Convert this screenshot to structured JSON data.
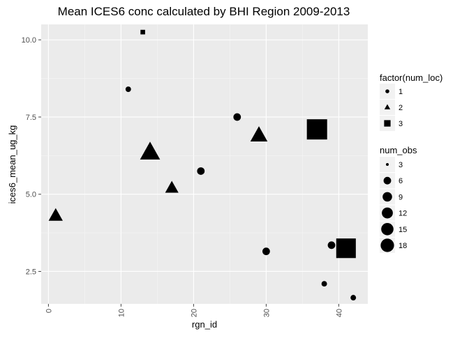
{
  "chart_data": {
    "type": "scatter",
    "title": "Mean ICES6 conc calculated by BHI Region 2009-2013",
    "xlabel": "rgn_id",
    "ylabel": "ices6_mean_ug_kg",
    "xlim": [
      -1,
      44
    ],
    "ylim": [
      1.45,
      10.5
    ],
    "x_ticks": [
      0,
      10,
      20,
      30,
      40
    ],
    "x_tick_labels": [
      "0",
      "10",
      "20",
      "30",
      "40"
    ],
    "y_ticks": [
      2.5,
      5.0,
      7.5,
      10.0
    ],
    "y_tick_labels": [
      "2.5",
      "5.0",
      "7.5",
      "10.0"
    ],
    "grid": true,
    "background": "#ebebeb",
    "point_color": "#000000",
    "points": [
      {
        "x": 1,
        "y": 4.3,
        "num_loc": 2,
        "num_obs": 9
      },
      {
        "x": 11,
        "y": 8.4,
        "num_loc": 1,
        "num_obs": 4
      },
      {
        "x": 13,
        "y": 10.25,
        "num_loc": 3,
        "num_obs": 3
      },
      {
        "x": 14,
        "y": 6.35,
        "num_loc": 2,
        "num_obs": 18
      },
      {
        "x": 17,
        "y": 5.2,
        "num_loc": 2,
        "num_obs": 8
      },
      {
        "x": 21,
        "y": 5.75,
        "num_loc": 1,
        "num_obs": 6
      },
      {
        "x": 26,
        "y": 7.5,
        "num_loc": 1,
        "num_obs": 6
      },
      {
        "x": 29,
        "y": 6.9,
        "num_loc": 2,
        "num_obs": 13
      },
      {
        "x": 30,
        "y": 3.15,
        "num_loc": 1,
        "num_obs": 6
      },
      {
        "x": 37,
        "y": 7.1,
        "num_loc": 3,
        "num_obs": 15
      },
      {
        "x": 38,
        "y": 2.1,
        "num_loc": 1,
        "num_obs": 4
      },
      {
        "x": 39,
        "y": 3.35,
        "num_loc": 1,
        "num_obs": 6
      },
      {
        "x": 41,
        "y": 3.25,
        "num_loc": 3,
        "num_obs": 14
      },
      {
        "x": 42,
        "y": 1.65,
        "num_loc": 1,
        "num_obs": 4
      }
    ],
    "legend_shape": {
      "title": "factor(num_loc)",
      "entries": [
        {
          "label": "1",
          "shape": "circle"
        },
        {
          "label": "2",
          "shape": "triangle"
        },
        {
          "label": "3",
          "shape": "square"
        }
      ]
    },
    "legend_size": {
      "title": "num_obs",
      "entries": [
        {
          "label": "3",
          "value": 3
        },
        {
          "label": "6",
          "value": 6
        },
        {
          "label": "9",
          "value": 9
        },
        {
          "label": "12",
          "value": 12
        },
        {
          "label": "15",
          "value": 15
        },
        {
          "label": "18",
          "value": 18
        }
      ]
    },
    "legend_position": "right"
  }
}
